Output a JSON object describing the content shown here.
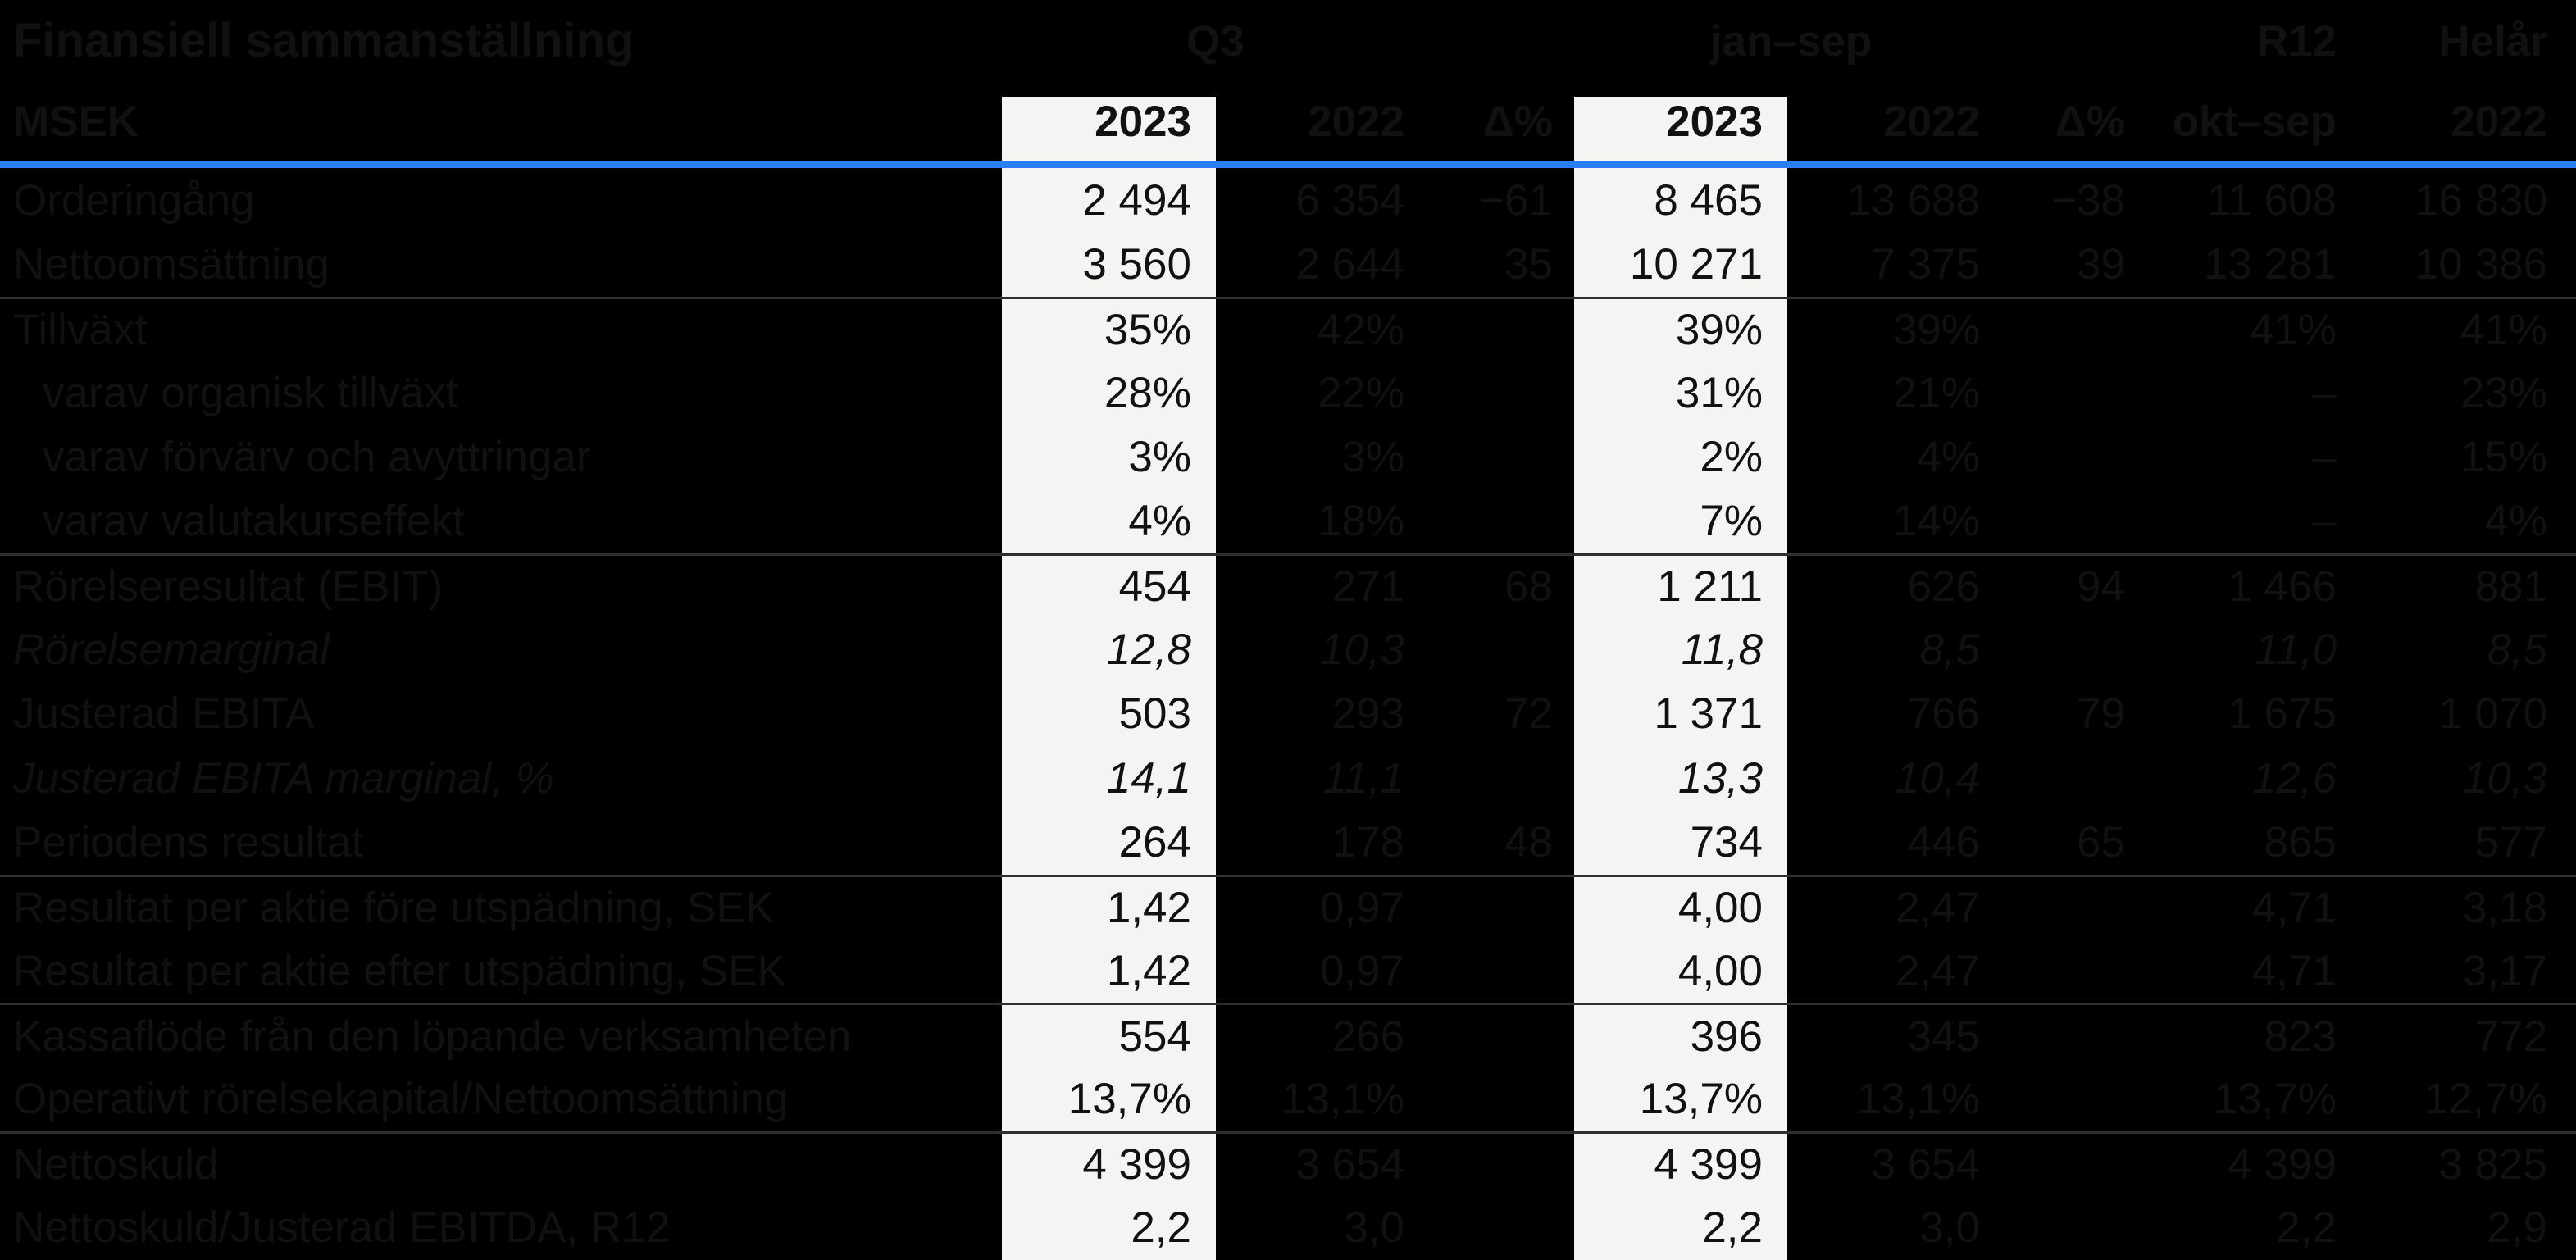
{
  "header": {
    "title": "Finansiell sammanställning",
    "unit_label": "MSEK",
    "groups": [
      {
        "label": "Q3"
      },
      {
        "label": "jan–sep"
      },
      {
        "label": "R12"
      },
      {
        "label": "Helår"
      }
    ],
    "columns": [
      "2023",
      "2022",
      "Δ%",
      "2023",
      "2022",
      "Δ%",
      "okt–sep",
      "2022"
    ]
  },
  "colors": {
    "background": "#000000",
    "text": "#111111",
    "accent_blue": "#2B7FF2",
    "column_highlight": "#F4F4F2",
    "rule_gray": "#2F2F2F"
  },
  "table": {
    "rows": [
      {
        "label": "Orderingång",
        "indent": false,
        "italic": false,
        "rule_above": false,
        "values": [
          "2 494",
          "6 354",
          "−61",
          "8 465",
          "13 688",
          "−38",
          "11 608",
          "16 830"
        ]
      },
      {
        "label": "Nettoomsättning",
        "indent": false,
        "italic": false,
        "rule_above": false,
        "values": [
          "3 560",
          "2 644",
          "35",
          "10 271",
          "7 375",
          "39",
          "13 281",
          "10 386"
        ]
      },
      {
        "label": "Tillväxt",
        "indent": false,
        "italic": false,
        "rule_above": true,
        "values": [
          "35%",
          "42%",
          "",
          "39%",
          "39%",
          "",
          "41%",
          "41%"
        ]
      },
      {
        "label": "varav organisk tillväxt",
        "indent": true,
        "italic": false,
        "rule_above": false,
        "values": [
          "28%",
          "22%",
          "",
          "31%",
          "21%",
          "",
          "–",
          "23%"
        ]
      },
      {
        "label": "varav förvärv och avyttringar",
        "indent": true,
        "italic": false,
        "rule_above": false,
        "values": [
          "3%",
          "3%",
          "",
          "2%",
          "4%",
          "",
          "–",
          "15%"
        ]
      },
      {
        "label": "varav valutakurseffekt",
        "indent": true,
        "italic": false,
        "rule_above": false,
        "values": [
          "4%",
          "18%",
          "",
          "7%",
          "14%",
          "",
          "–",
          "4%"
        ]
      },
      {
        "label": "Rörelseresultat (EBIT)",
        "indent": false,
        "italic": false,
        "rule_above": true,
        "values": [
          "454",
          "271",
          "68",
          "1 211",
          "626",
          "94",
          "1 466",
          "881"
        ]
      },
      {
        "label": "Rörelsemarginal",
        "indent": false,
        "italic": true,
        "rule_above": false,
        "values": [
          "12,8",
          "10,3",
          "",
          "11,8",
          "8,5",
          "",
          "11,0",
          "8,5"
        ]
      },
      {
        "label": "Justerad EBITA",
        "indent": false,
        "italic": false,
        "rule_above": false,
        "values": [
          "503",
          "293",
          "72",
          "1 371",
          "766",
          "79",
          "1 675",
          "1 070"
        ]
      },
      {
        "label": "Justerad EBITA marginal, %",
        "indent": false,
        "italic": true,
        "rule_above": false,
        "values": [
          "14,1",
          "11,1",
          "",
          "13,3",
          "10,4",
          "",
          "12,6",
          "10,3"
        ]
      },
      {
        "label": "Periodens resultat",
        "indent": false,
        "italic": false,
        "rule_above": false,
        "values": [
          "264",
          "178",
          "48",
          "734",
          "446",
          "65",
          "865",
          "577"
        ]
      },
      {
        "label": "Resultat per aktie före utspädning, SEK",
        "indent": false,
        "italic": false,
        "rule_above": true,
        "values": [
          "1,42",
          "0,97",
          "",
          "4,00",
          "2,47",
          "",
          "4,71",
          "3,18"
        ]
      },
      {
        "label": "Resultat per aktie efter utspädning, SEK",
        "indent": false,
        "italic": false,
        "rule_above": false,
        "values": [
          "1,42",
          "0,97",
          "",
          "4,00",
          "2,47",
          "",
          "4,71",
          "3,17"
        ]
      },
      {
        "label": "Kassaflöde från den löpande verksamheten",
        "indent": false,
        "italic": false,
        "rule_above": true,
        "values": [
          "554",
          "266",
          "",
          "396",
          "345",
          "",
          "823",
          "772"
        ]
      },
      {
        "label": "Operativt rörelsekapital/Nettoomsättning",
        "indent": false,
        "italic": false,
        "rule_above": false,
        "values": [
          "13,7%",
          "13,1%",
          "",
          "13,7%",
          "13,1%",
          "",
          "13,7%",
          "12,7%"
        ]
      },
      {
        "label": "Nettoskuld",
        "indent": false,
        "italic": false,
        "rule_above": true,
        "values": [
          "4 399",
          "3 654",
          "",
          "4 399",
          "3 654",
          "",
          "4 399",
          "3 825"
        ]
      },
      {
        "label": "Nettoskuld/Justerad EBITDA, R12",
        "indent": false,
        "italic": false,
        "rule_above": false,
        "values": [
          "2,2",
          "3,0",
          "",
          "2,2",
          "3,0",
          "",
          "2,2",
          "2,9"
        ]
      }
    ]
  }
}
